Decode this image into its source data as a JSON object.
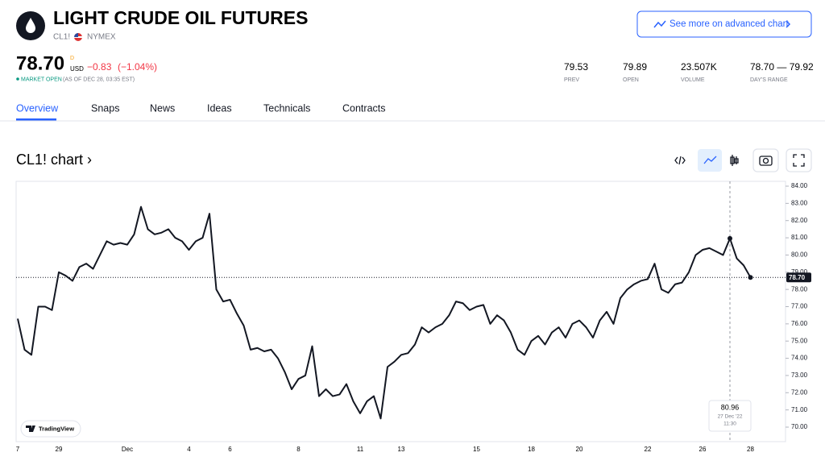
{
  "header": {
    "title": "LIGHT CRUDE OIL FUTURES",
    "symbol": "CL1!",
    "exchange": "NYMEX",
    "button": "See more on advanced chart"
  },
  "quote": {
    "price": "78.70",
    "flag": "D",
    "currency": "USD",
    "change": "−0.83",
    "change_pct": "(−1.04%)",
    "status": "MARKET OPEN",
    "as_of": "(AS OF DEC 28, 03:35 EST)"
  },
  "stats": [
    {
      "value": "79.53",
      "label": "PREV"
    },
    {
      "value": "79.89",
      "label": "OPEN"
    },
    {
      "value": "23.507K",
      "label": "VOLUME"
    },
    {
      "value": "78.70 — 79.92",
      "label": "DAY'S RANGE"
    }
  ],
  "tabs": [
    "Overview",
    "Snaps",
    "News",
    "Ideas",
    "Technicals",
    "Contracts"
  ],
  "section_title": "CL1! chart ›",
  "chart_data": {
    "type": "line",
    "color": "#131722",
    "grid": false,
    "watermark": "TradingView",
    "ylim": [
      70,
      84
    ],
    "yticks": [
      {
        "value": 70,
        "label": "70.00"
      },
      {
        "value": 71,
        "label": "71.00"
      },
      {
        "value": 72,
        "label": "72.00"
      },
      {
        "value": 73,
        "label": "73.00"
      },
      {
        "value": 74,
        "label": "74.00"
      },
      {
        "value": 75,
        "label": "75.00"
      },
      {
        "value": 76,
        "label": "76.00"
      },
      {
        "value": 77,
        "label": "77.00"
      },
      {
        "value": 78,
        "label": "78.00"
      },
      {
        "value": 79,
        "label": "79.00"
      },
      {
        "value": 80,
        "label": "80.00"
      },
      {
        "value": 81,
        "label": "81.00"
      },
      {
        "value": 82,
        "label": "82.00"
      },
      {
        "value": 83,
        "label": "83.00"
      },
      {
        "value": 84,
        "label": "84.00"
      }
    ],
    "categories": [
      "7",
      null,
      null,
      null,
      null,
      null,
      "29",
      null,
      null,
      null,
      null,
      null,
      null,
      null,
      null,
      null,
      "Dec",
      null,
      null,
      null,
      null,
      null,
      null,
      null,
      null,
      "4",
      null,
      null,
      null,
      null,
      null,
      "6",
      null,
      null,
      null,
      null,
      null,
      null,
      null,
      null,
      null,
      "8",
      null,
      null,
      null,
      null,
      null,
      null,
      null,
      null,
      "11",
      null,
      null,
      null,
      null,
      null,
      "13",
      null,
      null,
      null,
      null,
      null,
      null,
      null,
      null,
      null,
      null,
      "15",
      null,
      null,
      null,
      null,
      null,
      null,
      null,
      "18",
      null,
      null,
      null,
      null,
      null,
      null,
      "20",
      null,
      null,
      null,
      null,
      null,
      null,
      null,
      null,
      null,
      "22",
      null,
      null,
      null,
      null,
      null,
      null,
      null,
      "26",
      null,
      null,
      null,
      null,
      null,
      null,
      "28",
      null,
      null,
      null,
      null,
      null
    ],
    "values": [
      76.3,
      74.5,
      74.2,
      77.0,
      77.0,
      76.8,
      79.0,
      78.8,
      78.5,
      79.3,
      79.5,
      79.2,
      80.0,
      80.8,
      80.6,
      80.7,
      80.6,
      81.2,
      82.8,
      81.5,
      81.2,
      81.3,
      81.5,
      81.0,
      80.8,
      80.3,
      80.8,
      81.0,
      82.4,
      78.0,
      77.3,
      77.4,
      76.6,
      75.9,
      74.5,
      74.6,
      74.4,
      74.5,
      74.0,
      73.2,
      72.2,
      72.8,
      73.0,
      74.7,
      71.8,
      72.2,
      71.8,
      71.9,
      72.5,
      71.5,
      70.8,
      71.5,
      71.8,
      70.5,
      73.5,
      73.8,
      74.2,
      74.3,
      74.8,
      75.8,
      75.5,
      75.8,
      76.0,
      76.5,
      77.3,
      77.2,
      76.8,
      77.0,
      77.1,
      76.0,
      76.5,
      76.2,
      75.5,
      74.5,
      74.2,
      75.0,
      75.3,
      74.8,
      75.5,
      75.8,
      75.2,
      76.0,
      76.2,
      75.8,
      75.2,
      76.2,
      76.7,
      76.0,
      77.5,
      78.0,
      78.3,
      78.5,
      78.6,
      79.5,
      78.0,
      77.8,
      78.3,
      78.4,
      79.0,
      80.0,
      80.3,
      80.4,
      80.2,
      80.0,
      80.96,
      79.8,
      79.4,
      78.7,
      null,
      null,
      null,
      null,
      null
    ],
    "tooltip_date": "27 Dec '22",
    "tooltip_time": "11:30"
  }
}
